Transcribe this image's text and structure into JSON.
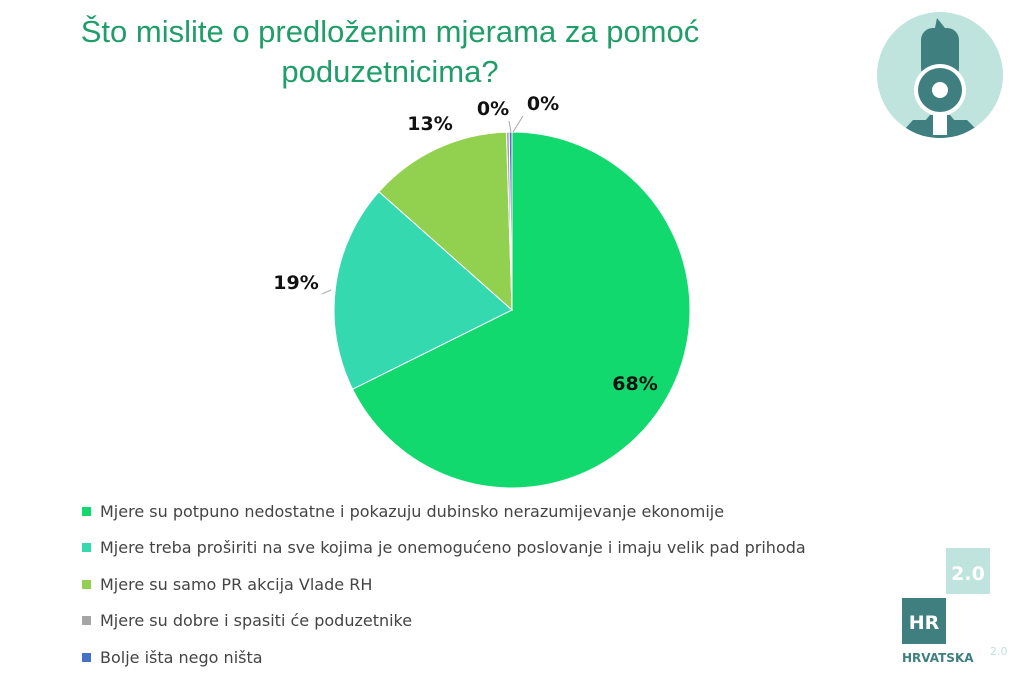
{
  "title": "Što mislite o predloženim mjerama za pomoć poduzetnicima?",
  "chart_data": {
    "type": "pie",
    "title": "Što mislite o predloženim mjerama za pomoć poduzetnicima?",
    "legend_position": "bottom",
    "start_angle": "top, clockwise",
    "slices": [
      {
        "name": "Mjere su potpuno nedostatne i pokazuju dubinsko nerazumijevanje ekonomije",
        "value": 68,
        "label": "68%",
        "color": "#12D96E"
      },
      {
        "name": "Mjere treba proširiti na sve kojima je onemogućeno poslovanje i imaju velik pad prihoda",
        "value": 19,
        "label": "19%",
        "color": "#35D9B0"
      },
      {
        "name": "Mjere su samo PR akcija Vlade RH",
        "value": 13,
        "label": "13%",
        "color": "#92D050"
      },
      {
        "name": "Mjere su dobre i spasiti će poduzetnike",
        "value": 0,
        "label": "0%",
        "color": "#A5A5A5"
      },
      {
        "name": "Bolje išta nego ništa",
        "value": 0,
        "label": "0%",
        "color": "#4472C4"
      }
    ]
  },
  "logo": {
    "hr": "HR",
    "version": "2.0",
    "name": "HRVATSKA",
    "colors": {
      "dark": "#3f7f80",
      "light": "#bfe3dd"
    }
  },
  "avatar": {
    "icon": "man-with-megaphone-icon",
    "colors": {
      "bg": "#bfe3dd",
      "fg": "#3f7f80"
    }
  }
}
